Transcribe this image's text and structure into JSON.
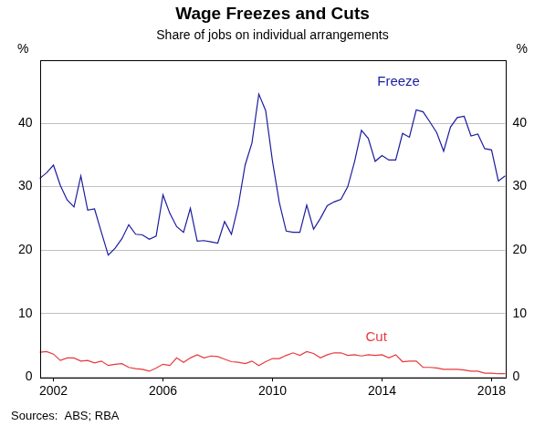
{
  "chart_data": {
    "type": "line",
    "title": "Wage Freezes and Cuts",
    "subtitle": "Share of jobs on individual arrangements",
    "y_label": "%",
    "y2_label": "%",
    "source": "Sources:  ABS; RBA",
    "categories": [
      null,
      null,
      "2002",
      null,
      null,
      null,
      null,
      null,
      null,
      null,
      null,
      null,
      null,
      null,
      null,
      null,
      null,
      null,
      "2006",
      null,
      null,
      null,
      null,
      null,
      null,
      null,
      null,
      null,
      null,
      null,
      null,
      null,
      null,
      null,
      "2010",
      null,
      null,
      null,
      null,
      null,
      null,
      null,
      null,
      null,
      null,
      null,
      null,
      null,
      null,
      null,
      "2014",
      null,
      null,
      null,
      null,
      null,
      null,
      null,
      null,
      null,
      null,
      null,
      null,
      null,
      null,
      null,
      "2018",
      null,
      null
    ],
    "series": [
      {
        "name": "Freeze",
        "color": "#1c1ca0",
        "values": [
          31.3,
          32.2,
          33.4,
          30.2,
          27.9,
          26.8,
          31.7,
          26.3,
          26.5,
          22.8,
          19.2,
          20.3,
          21.8,
          24.0,
          22.5,
          22.4,
          21.7,
          22.2,
          28.7,
          25.8,
          23.7,
          22.8,
          26.6,
          21.4,
          21.5,
          21.3,
          21.1,
          24.5,
          22.5,
          27.0,
          33.4,
          36.9,
          44.6,
          42.0,
          34.0,
          27.5,
          23.0,
          22.8,
          22.8,
          27.1,
          23.3,
          25.0,
          27.0,
          27.6,
          28.0,
          30.0,
          34.0,
          38.9,
          37.6,
          34.0,
          34.9,
          34.2,
          34.2,
          38.4,
          37.8,
          42.1,
          41.8,
          40.2,
          38.5,
          35.6,
          39.4,
          40.9,
          41.1,
          38.0,
          38.3,
          36.0,
          35.8,
          30.9,
          31.7
        ]
      },
      {
        "name": "Cut",
        "color": "#e8383d",
        "values": [
          3.9,
          4.0,
          3.6,
          2.6,
          3.0,
          3.0,
          2.5,
          2.6,
          2.2,
          2.5,
          1.8,
          2.0,
          2.1,
          1.5,
          1.3,
          1.2,
          0.9,
          1.4,
          2.0,
          1.8,
          3.0,
          2.3,
          3.0,
          3.5,
          3.0,
          3.3,
          3.2,
          2.8,
          2.4,
          2.3,
          2.1,
          2.5,
          1.8,
          2.4,
          2.9,
          2.9,
          3.4,
          3.8,
          3.4,
          4.0,
          3.7,
          3.0,
          3.5,
          3.8,
          3.8,
          3.4,
          3.5,
          3.3,
          3.5,
          3.4,
          3.5,
          3.0,
          3.5,
          2.4,
          2.5,
          2.5,
          1.5,
          1.5,
          1.4,
          1.2,
          1.2,
          1.2,
          1.1,
          0.9,
          0.9,
          0.6,
          0.6,
          0.5,
          0.5
        ]
      }
    ],
    "ylim": [
      0,
      50
    ],
    "yticks": [
      0,
      10,
      20,
      30,
      40
    ],
    "y2lim": [
      0,
      50
    ],
    "y2ticks": [
      0,
      10,
      20,
      30,
      40
    ],
    "grid": true
  }
}
